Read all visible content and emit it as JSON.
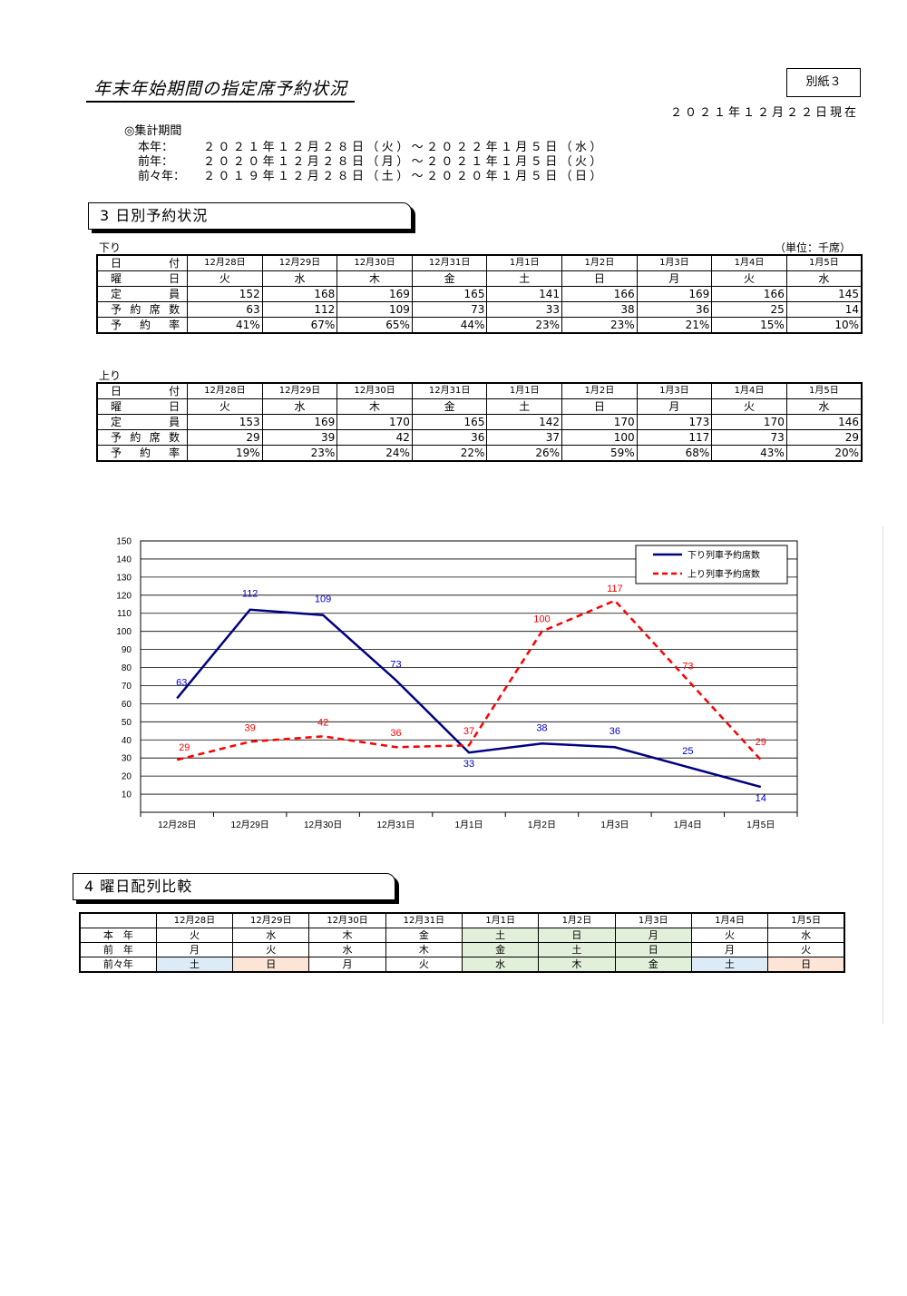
{
  "header": {
    "title": "年末年始期間の指定席予約状況",
    "attachment": "別紙３",
    "as_of": "２０２１年１２月２２日現在"
  },
  "period": {
    "heading": "◎集計期間",
    "rows": [
      {
        "label": "本年：",
        "value": "２０２１年１２月２８日（火）～２０２２年１月５日（水）"
      },
      {
        "label": "前年：",
        "value": "２０２０年１２月２８日（月）～２０２１年１月５日（火）"
      },
      {
        "label": "前々年：",
        "value": "２０１９年１２月２８日（土）～２０２０年１月５日（日）"
      }
    ]
  },
  "section3": {
    "title": "3 日別予約状況",
    "unit": "（単位：千席）",
    "dates": [
      "12月28日",
      "12月29日",
      "12月30日",
      "12月31日",
      "1月1日",
      "1月2日",
      "1月3日",
      "1月4日",
      "1月5日"
    ],
    "row_labels": {
      "date": "日　付",
      "dow": "曜　日",
      "capacity": "定　員",
      "reserved": "予約席数",
      "rate": "予約率"
    },
    "down": {
      "label": "下り",
      "dow": [
        "火",
        "水",
        "木",
        "金",
        "土",
        "日",
        "月",
        "火",
        "水"
      ],
      "capacity": [
        "152",
        "168",
        "169",
        "165",
        "141",
        "166",
        "169",
        "166",
        "145"
      ],
      "reserved": [
        "63",
        "112",
        "109",
        "73",
        "33",
        "38",
        "36",
        "25",
        "14"
      ],
      "rate": [
        "41%",
        "67%",
        "65%",
        "44%",
        "23%",
        "23%",
        "21%",
        "15%",
        "10%"
      ]
    },
    "up": {
      "label": "上り",
      "dow": [
        "火",
        "水",
        "木",
        "金",
        "土",
        "日",
        "月",
        "火",
        "水"
      ],
      "capacity": [
        "153",
        "169",
        "170",
        "165",
        "142",
        "170",
        "173",
        "170",
        "146"
      ],
      "reserved": [
        "29",
        "39",
        "42",
        "36",
        "37",
        "100",
        "117",
        "73",
        "29"
      ],
      "rate": [
        "19%",
        "23%",
        "24%",
        "22%",
        "26%",
        "59%",
        "68%",
        "43%",
        "20%"
      ]
    }
  },
  "chart_data": {
    "type": "line",
    "categories": [
      "12月28日",
      "12月29日",
      "12月30日",
      "12月31日",
      "1月1日",
      "1月2日",
      "1月3日",
      "1月4日",
      "1月5日"
    ],
    "series": [
      {
        "name": "下り列車予約席数",
        "values": [
          63,
          112,
          109,
          73,
          33,
          38,
          36,
          25,
          14
        ],
        "color": "#000080",
        "style": "solid"
      },
      {
        "name": "上り列車予約席数",
        "values": [
          29,
          39,
          42,
          36,
          37,
          100,
          117,
          73,
          29
        ],
        "color": "#ff0000",
        "style": "dashed"
      }
    ],
    "ylim": [
      0,
      150
    ],
    "yticks": [
      10,
      20,
      30,
      40,
      50,
      60,
      70,
      80,
      90,
      100,
      110,
      120,
      130,
      140,
      150
    ],
    "grid": true,
    "legend": "top-right",
    "label_colors": [
      "#0000cc",
      "#ff0000"
    ]
  },
  "section4": {
    "title": "4 曜日配列比較",
    "dates": [
      "12月28日",
      "12月29日",
      "12月30日",
      "12月31日",
      "1月1日",
      "1月2日",
      "1月3日",
      "1月4日",
      "1月5日"
    ],
    "rows": [
      {
        "label": "本　年",
        "days": [
          "火",
          "水",
          "木",
          "金",
          "土",
          "日",
          "月",
          "火",
          "水"
        ]
      },
      {
        "label": "前　年",
        "days": [
          "月",
          "火",
          "水",
          "木",
          "金",
          "土",
          "日",
          "月",
          "火"
        ]
      },
      {
        "label": "前々年",
        "days": [
          "土",
          "日",
          "月",
          "火",
          "水",
          "木",
          "金",
          "土",
          "日"
        ]
      }
    ],
    "highlight_colors": {
      "green": "#e2efda",
      "blue": "#ddebf7",
      "peach": "#fce4d6"
    }
  }
}
